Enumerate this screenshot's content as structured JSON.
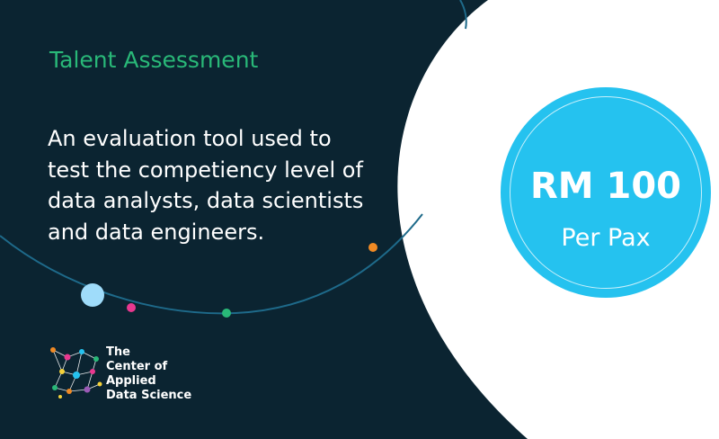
{
  "theme": {
    "dark_background": "#0b2431",
    "title_color": "#29b878",
    "badge_color": "#25c2ef",
    "orbit_color": "#1e6a8a"
  },
  "heading": {
    "title": "Talent Assessment"
  },
  "description": {
    "lines": [
      "An evaluation tool used to",
      "test the competiency level of",
      "data analysts, data scientists",
      "and data engineers."
    ]
  },
  "price": {
    "amount": "RM 100",
    "unit": "Per Pax"
  },
  "logo": {
    "lines": [
      "The",
      "Center of",
      "Applied",
      "Data Science"
    ],
    "icon": "network-icon"
  },
  "decor": {
    "dots": [
      {
        "name": "orbit-dot-light-blue",
        "color": "#9fdcfa"
      },
      {
        "name": "orbit-dot-pink",
        "color": "#e8388f"
      },
      {
        "name": "orbit-dot-green",
        "color": "#29b878"
      },
      {
        "name": "orbit-dot-orange",
        "color": "#f08a24"
      }
    ]
  }
}
